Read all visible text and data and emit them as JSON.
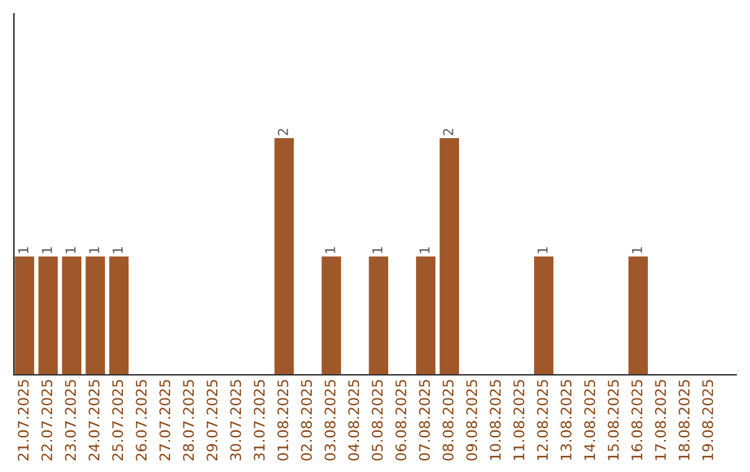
{
  "chart_data": {
    "type": "bar",
    "categories": [
      "21.07.2025",
      "22.07.2025",
      "23.07.2025",
      "24.07.2025",
      "25.07.2025",
      "26.07.2025",
      "27.07.2025",
      "28.07.2025",
      "29.07.2025",
      "30.07.2025",
      "31.07.2025",
      "01.08.2025",
      "02.08.2025",
      "03.08.2025",
      "04.08.2025",
      "05.08.2025",
      "06.08.2025",
      "07.08.2025",
      "08.08.2025",
      "09.08.2025",
      "10.08.2025",
      "11.08.2025",
      "12.08.2025",
      "13.08.2025",
      "14.08.2025",
      "15.08.2025",
      "16.08.2025",
      "17.08.2025",
      "18.08.2025",
      "19.08.2025"
    ],
    "values": [
      1,
      1,
      1,
      1,
      1,
      0,
      0,
      0,
      0,
      0,
      0,
      2,
      0,
      1,
      0,
      1,
      0,
      1,
      2,
      0,
      0,
      0,
      1,
      0,
      0,
      0,
      1,
      0,
      0,
      0
    ],
    "value_labels": [
      "1",
      "1",
      "1",
      "1",
      "1",
      null,
      null,
      null,
      null,
      null,
      null,
      "2",
      null,
      "1",
      null,
      "1",
      null,
      "1",
      "2",
      null,
      null,
      null,
      "1",
      null,
      null,
      null,
      "1",
      null,
      null,
      null
    ],
    "color": "#a0582a",
    "ylim": [
      0,
      3.05
    ],
    "tick_labels": "x",
    "grid": false,
    "legend": false
  }
}
